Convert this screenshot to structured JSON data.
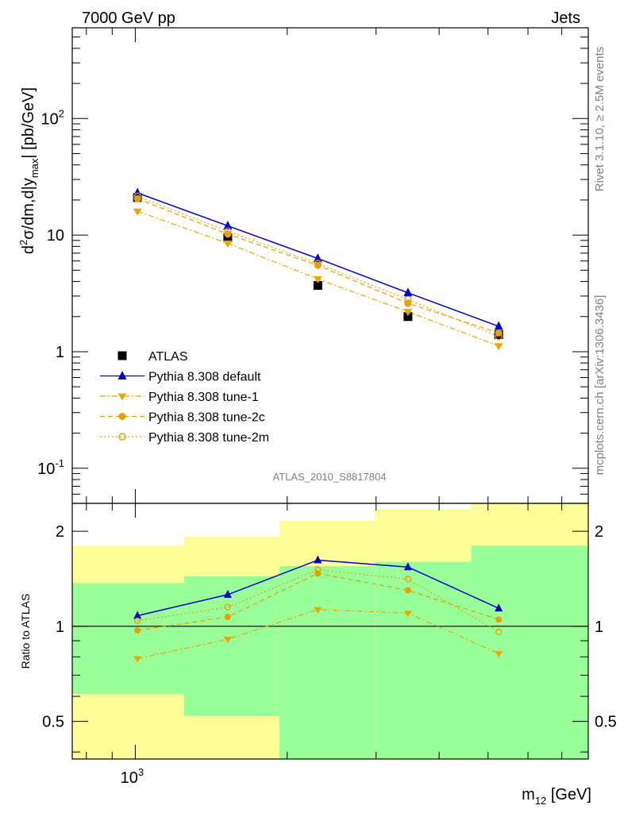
{
  "header": {
    "left": "7000 GeV pp",
    "right": "Jets"
  },
  "side_text": {
    "rivet": "Rivet 3.1.10, ≥ 2.5M events",
    "mcplots": "mcplots.cern.ch [arXiv:1306.3436]"
  },
  "analysis_id": "ATLAS_2010_S8817804",
  "chart_data": {
    "type": "line",
    "x_label": "m12 [GeV]",
    "x_scale": "log",
    "x_tick_label": "10^3",
    "main_panel": {
      "y_label": "d²σ/dm,d|y_max| [pb/GeV]",
      "y_scale": "log",
      "ylim": [
        0.05,
        600
      ],
      "y_tick_labels": [
        "10^-1",
        "1",
        "10",
        "10^2"
      ],
      "legend_position": "bottom-left",
      "x": [
        1010,
        1525,
        2300,
        3470,
        5250
      ],
      "series": [
        {
          "name": "ATLAS",
          "color": "#000000",
          "marker": "square",
          "values": [
            21,
            9.5,
            3.7,
            2.0,
            1.4
          ]
        },
        {
          "name": "Pythia 8.308 default",
          "color": "#0000cc",
          "marker": "triangle-up",
          "values": [
            23,
            12,
            6.3,
            3.2,
            1.65
          ]
        },
        {
          "name": "Pythia 8.308 tune-1",
          "color": "#e8a800",
          "marker": "triangle-down",
          "values": [
            16,
            8.5,
            4.2,
            2.2,
            1.12
          ]
        },
        {
          "name": "Pythia 8.308 tune-2c",
          "color": "#e8a000",
          "marker": "circle",
          "values": [
            20.5,
            10.2,
            5.5,
            2.6,
            1.45
          ]
        },
        {
          "name": "Pythia 8.308 tune-2m",
          "color": "#e8a000",
          "marker": "open-circle",
          "values": [
            21.5,
            10.8,
            5.7,
            2.8,
            1.35
          ]
        }
      ]
    },
    "ratio_panel": {
      "y_label": "Ratio to ATLAS",
      "y_scale": "log",
      "ylim": [
        0.38,
        2.45
      ],
      "y_tick_labels": [
        "0.5",
        "1",
        "2"
      ],
      "reference_line": 1,
      "bin_edges": [
        750,
        1250,
        1930,
        2990,
        4630,
        7900
      ],
      "band_inner": {
        "color": "#99ff99",
        "low": [
          0.61,
          0.52,
          0.38,
          0.38,
          0.38
        ],
        "high": [
          1.37,
          1.44,
          1.55,
          1.6,
          1.8
        ]
      },
      "band_outer": {
        "color": "#ffff99",
        "low": [
          0.38,
          0.38,
          0.38,
          0.38,
          0.38
        ],
        "high": [
          1.8,
          1.92,
          2.16,
          2.35,
          2.45
        ]
      },
      "x": [
        1010,
        1525,
        2300,
        3470,
        5250
      ],
      "series": [
        {
          "name": "Pythia 8.308 default",
          "color": "#0000cc",
          "marker": "triangle-up",
          "values": [
            1.08,
            1.26,
            1.62,
            1.54,
            1.14
          ]
        },
        {
          "name": "Pythia 8.308 tune-1",
          "color": "#e8a800",
          "marker": "triangle-down",
          "values": [
            0.79,
            0.91,
            1.13,
            1.1,
            0.82
          ]
        },
        {
          "name": "Pythia 8.308 tune-2c",
          "color": "#e8a000",
          "marker": "circle",
          "values": [
            0.97,
            1.07,
            1.47,
            1.3,
            1.05
          ]
        },
        {
          "name": "Pythia 8.308 tune-2m",
          "color": "#e8a000",
          "marker": "open-circle",
          "values": [
            1.04,
            1.15,
            1.51,
            1.41,
            0.96
          ]
        }
      ]
    }
  }
}
